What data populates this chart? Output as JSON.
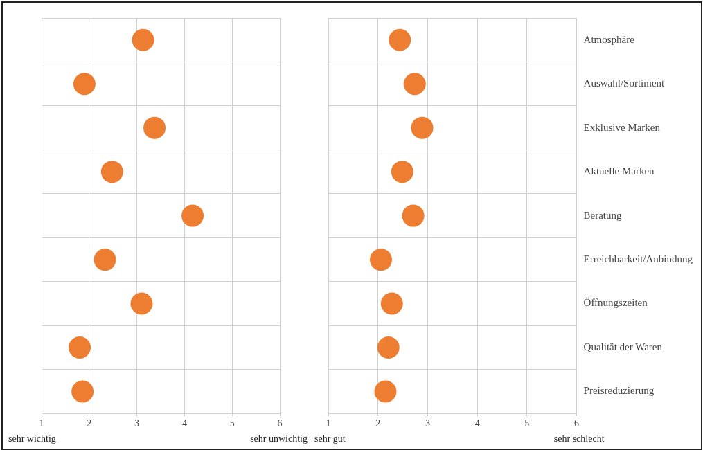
{
  "chart_data": [
    {
      "type": "scatter",
      "orientation": "horizontal",
      "categories": [
        null,
        null,
        null,
        null,
        null,
        null,
        null,
        null,
        null
      ],
      "values": [
        3.13,
        1.9,
        3.37,
        2.48,
        4.17,
        2.33,
        3.1,
        1.8,
        1.86
      ],
      "color": "#ed7d31",
      "xlim": [
        1,
        6
      ],
      "xticks": [
        1,
        2,
        3,
        4,
        5,
        6
      ],
      "grid": true,
      "legend": false,
      "marker": "circle",
      "tick_labels": "x",
      "annotations": [
        "sehr wichtig",
        "sehr unwichtig"
      ]
    },
    {
      "type": "scatter",
      "orientation": "horizontal",
      "categories": [
        "Atmosphäre",
        "Auswahl/Sortiment",
        "Exklusive Marken",
        "Aktuelle Marken",
        "Beratung",
        "Erreichbarkeit/Anbindung",
        "Öffnungszeiten",
        "Qualität der Waren",
        "Preisreduzierung"
      ],
      "values": [
        2.44,
        2.74,
        2.89,
        2.49,
        2.71,
        2.06,
        2.28,
        2.21,
        2.15
      ],
      "color": "#ed7d31",
      "xlim": [
        1,
        6
      ],
      "xticks": [
        1,
        2,
        3,
        4,
        5,
        6
      ],
      "grid": true,
      "legend": false,
      "marker": "circle",
      "annotations": [
        "sehr gut",
        "sehr schlecht"
      ]
    }
  ]
}
